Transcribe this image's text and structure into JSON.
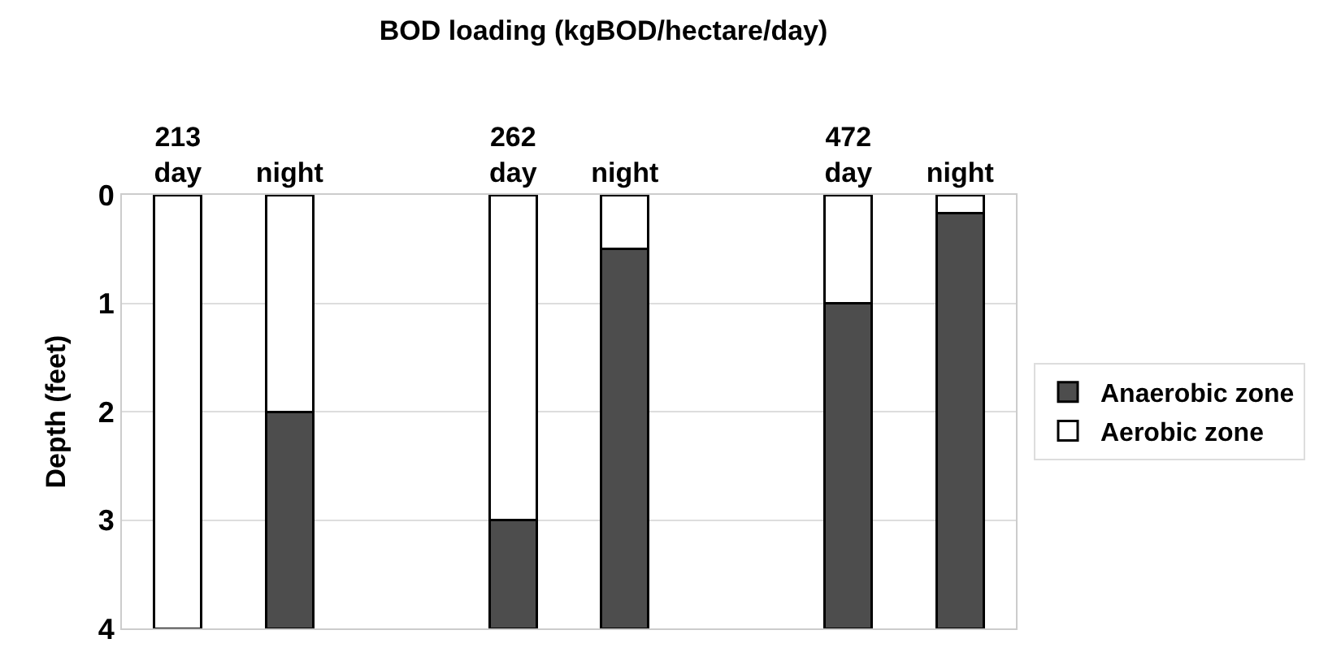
{
  "chart_data": {
    "type": "bar",
    "stacked": true,
    "title": "BOD loading (kgBOD/hectare/day)",
    "ylabel": "Depth (feet)",
    "categories": [
      "213\nday",
      "night",
      null,
      "262\nday",
      "night",
      null,
      "472\nday",
      "night"
    ],
    "series": [
      {
        "name": "Aerobic zone",
        "color": "#ffffff",
        "values": [
          4,
          2,
          null,
          3,
          0.5,
          null,
          1,
          0.17
        ]
      },
      {
        "name": "Anaerobic zone",
        "color": "#4d4d4d",
        "values": [
          null,
          2,
          null,
          1,
          3.5,
          null,
          3,
          3.83
        ]
      }
    ],
    "ylim": [
      4,
      0
    ],
    "yticks": [
      0,
      1,
      2,
      3,
      4
    ],
    "grid": "y",
    "legend": "right"
  }
}
